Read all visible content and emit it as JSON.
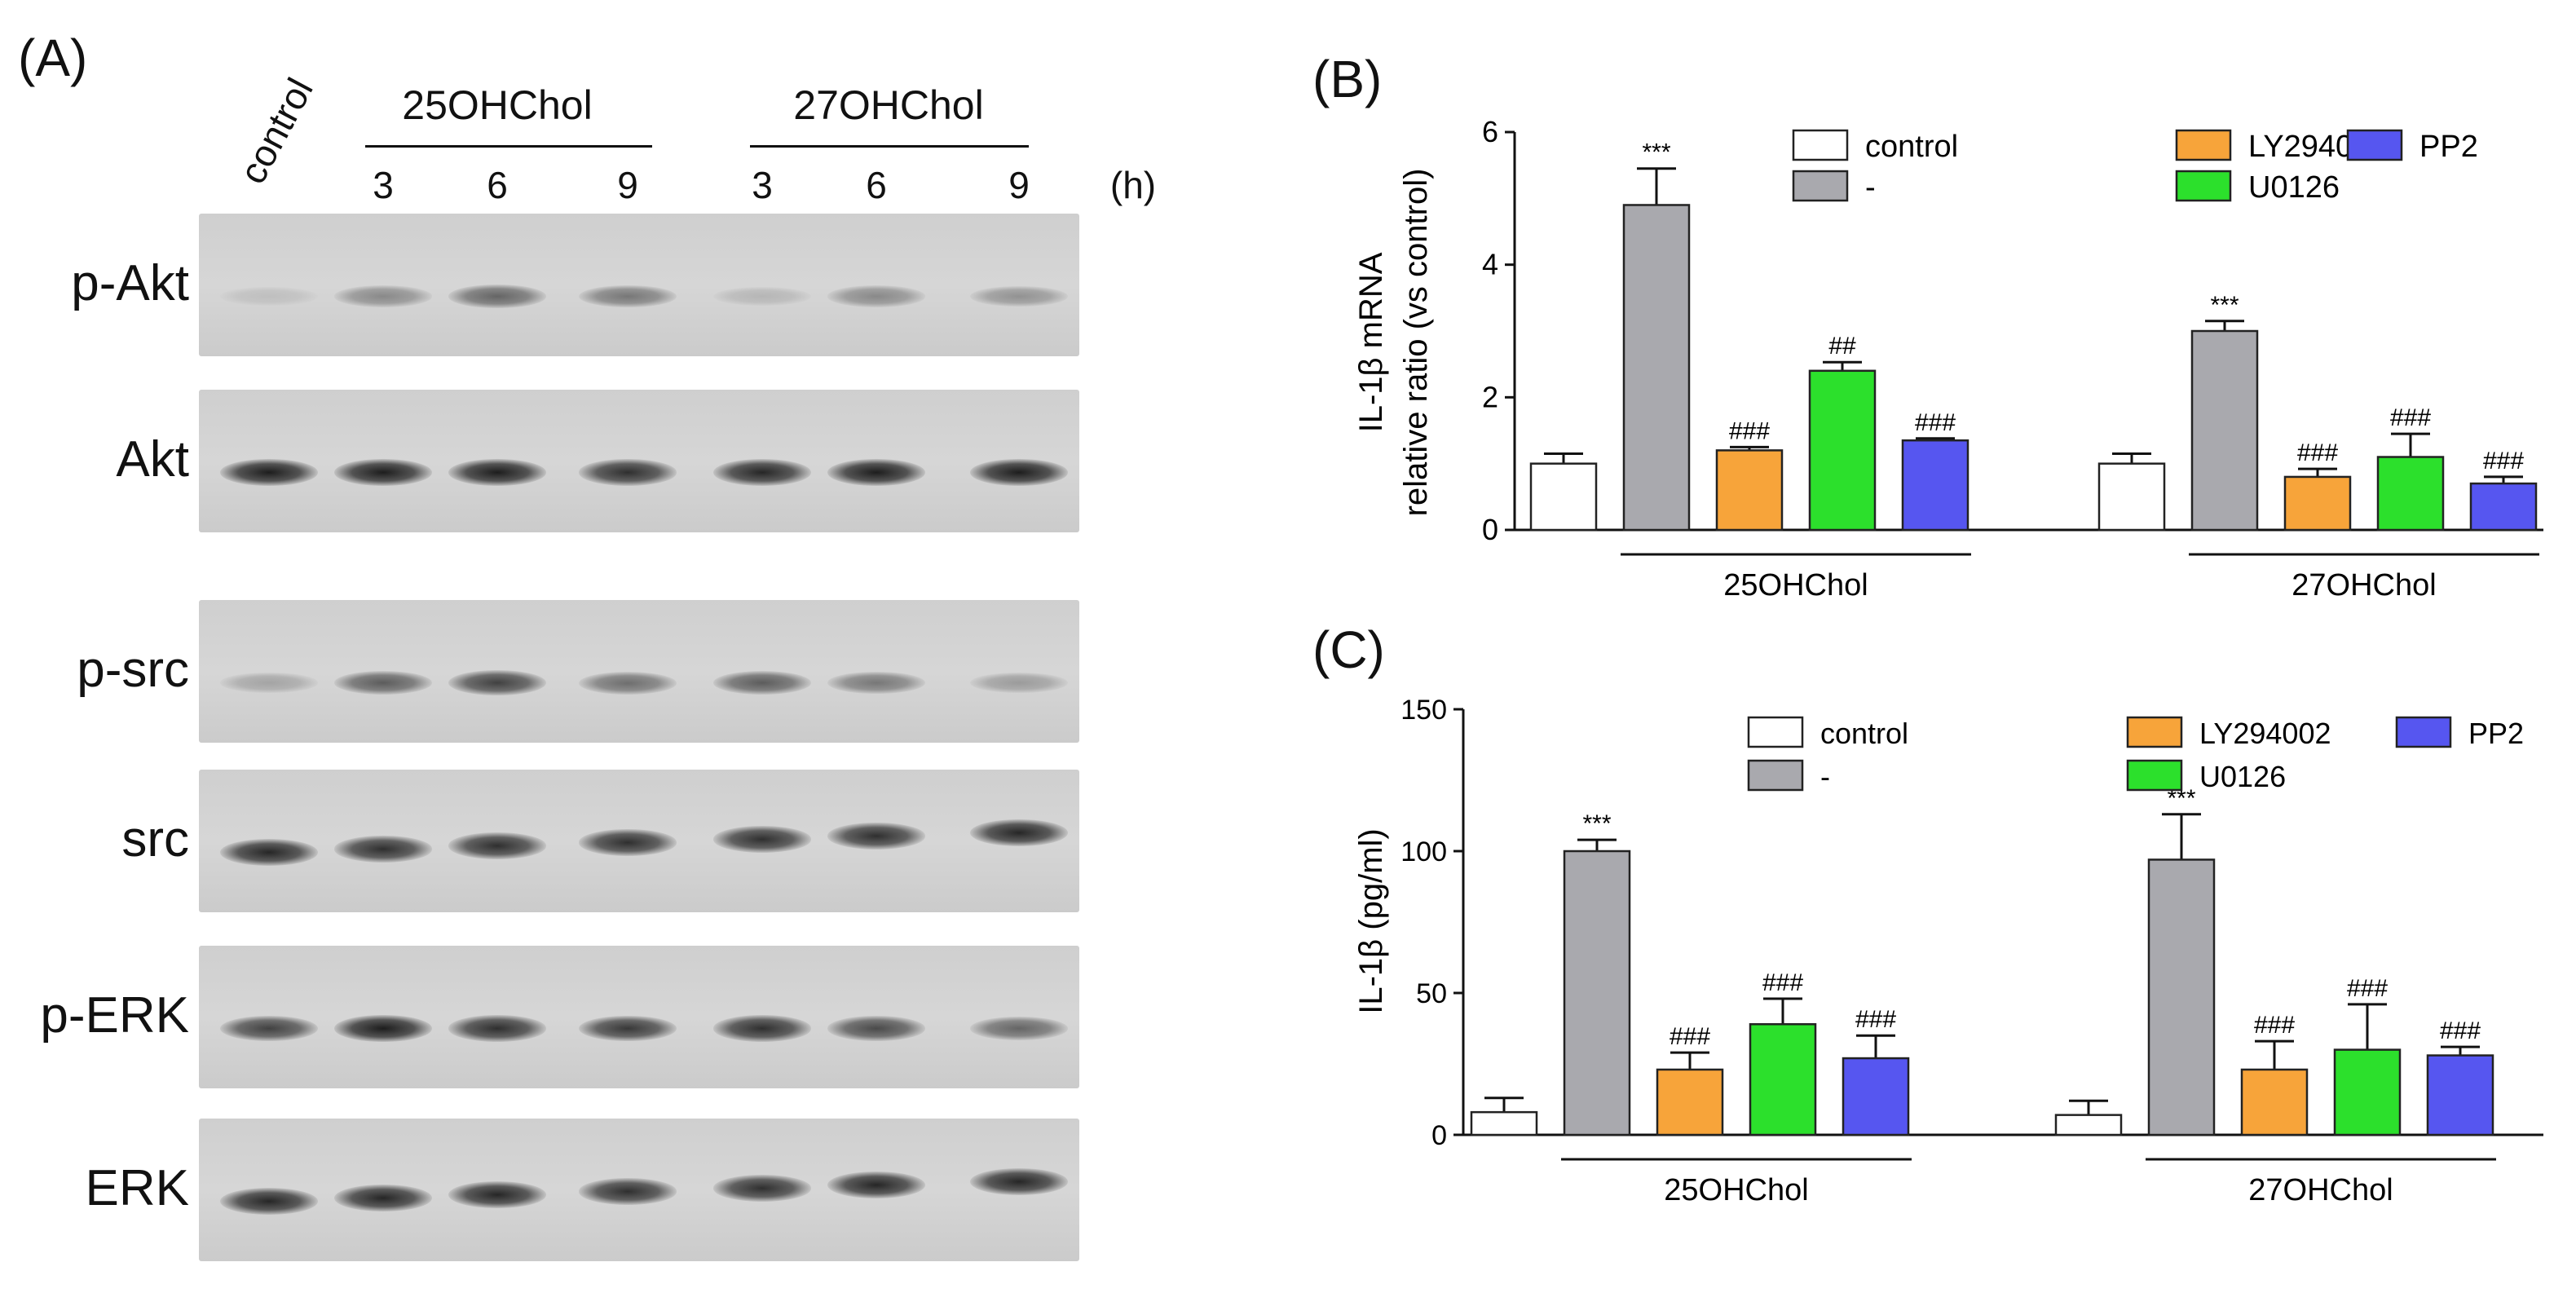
{
  "panel_labels": {
    "a": "(A)",
    "b": "(B)",
    "c": "(C)"
  },
  "blot": {
    "lane_labels": [
      "control",
      "3",
      "6",
      "9",
      "3",
      "6",
      "9"
    ],
    "time_unit": "(h)",
    "groups": [
      "25OHChol",
      "27OHChol"
    ],
    "rows": [
      {
        "label": "p-Akt",
        "intensity": [
          0.05,
          0.35,
          0.55,
          0.45,
          0.1,
          0.35,
          0.3
        ]
      },
      {
        "label": "Akt",
        "intensity": [
          0.95,
          0.95,
          0.95,
          0.85,
          0.9,
          0.95,
          0.95
        ]
      },
      {
        "label": "p-src",
        "intensity": [
          0.2,
          0.6,
          0.75,
          0.5,
          0.6,
          0.45,
          0.25
        ]
      },
      {
        "label": "src",
        "intensity": [
          0.9,
          0.85,
          0.85,
          0.85,
          0.85,
          0.85,
          0.9
        ]
      },
      {
        "label": "p-ERK",
        "intensity": [
          0.75,
          0.95,
          0.85,
          0.8,
          0.85,
          0.7,
          0.55
        ]
      },
      {
        "label": "ERK",
        "intensity": [
          0.9,
          0.9,
          0.9,
          0.85,
          0.85,
          0.9,
          0.9
        ]
      }
    ]
  },
  "legend_items": [
    {
      "label": "control",
      "color": "#ffffff"
    },
    {
      "label": "-",
      "color": "#a9a9ae"
    },
    {
      "label": "LY294002",
      "color": "#f7a43a"
    },
    {
      "label": "U0126",
      "color": "#2ce02c"
    },
    {
      "label": "PP2",
      "color": "#5656f0"
    }
  ],
  "chart_data": [
    {
      "type": "bar",
      "ylabel_line1": "IL-1β mRNA",
      "ylabel_line2": "relative ratio (vs control)",
      "ylim": [
        0,
        6
      ],
      "yticks": [
        "0",
        "2",
        "4",
        "6"
      ],
      "groups": [
        "25OHChol",
        "27OHChol"
      ],
      "series": [
        {
          "name": "control",
          "values": [
            1.0,
            1.0
          ],
          "errors": [
            0.15,
            0.15
          ],
          "annotations": [
            "",
            ""
          ]
        },
        {
          "name": "-",
          "values": [
            4.9,
            3.0
          ],
          "errors": [
            0.55,
            0.15
          ],
          "annotations": [
            "***",
            "***"
          ]
        },
        {
          "name": "LY294002",
          "values": [
            1.2,
            0.8
          ],
          "errors": [
            0.05,
            0.12
          ],
          "annotations": [
            "###",
            "###"
          ]
        },
        {
          "name": "U0126",
          "values": [
            2.4,
            1.1
          ],
          "errors": [
            0.13,
            0.35
          ],
          "annotations": [
            "##",
            "###"
          ]
        },
        {
          "name": "PP2",
          "values": [
            1.35,
            0.7
          ],
          "errors": [
            0.03,
            0.1
          ],
          "annotations": [
            "###",
            "###"
          ]
        }
      ]
    },
    {
      "type": "bar",
      "ylabel": "IL-1β (pg/ml)",
      "ylim": [
        0,
        150
      ],
      "yticks": [
        "0",
        "50",
        "100",
        "150"
      ],
      "groups": [
        "25OHChol",
        "27OHChol"
      ],
      "series": [
        {
          "name": "control",
          "values": [
            8,
            7
          ],
          "errors": [
            5,
            5
          ],
          "annotations": [
            "",
            ""
          ]
        },
        {
          "name": "-",
          "values": [
            100,
            97
          ],
          "errors": [
            4,
            16
          ],
          "annotations": [
            "***",
            "***"
          ]
        },
        {
          "name": "LY294002",
          "values": [
            23,
            23
          ],
          "errors": [
            6,
            10
          ],
          "annotations": [
            "###",
            "###"
          ]
        },
        {
          "name": "U0126",
          "values": [
            39,
            30
          ],
          "errors": [
            9,
            16
          ],
          "annotations": [
            "###",
            "###"
          ]
        },
        {
          "name": "PP2",
          "values": [
            27,
            28
          ],
          "errors": [
            8,
            3
          ],
          "annotations": [
            "###",
            "###"
          ]
        }
      ]
    }
  ]
}
